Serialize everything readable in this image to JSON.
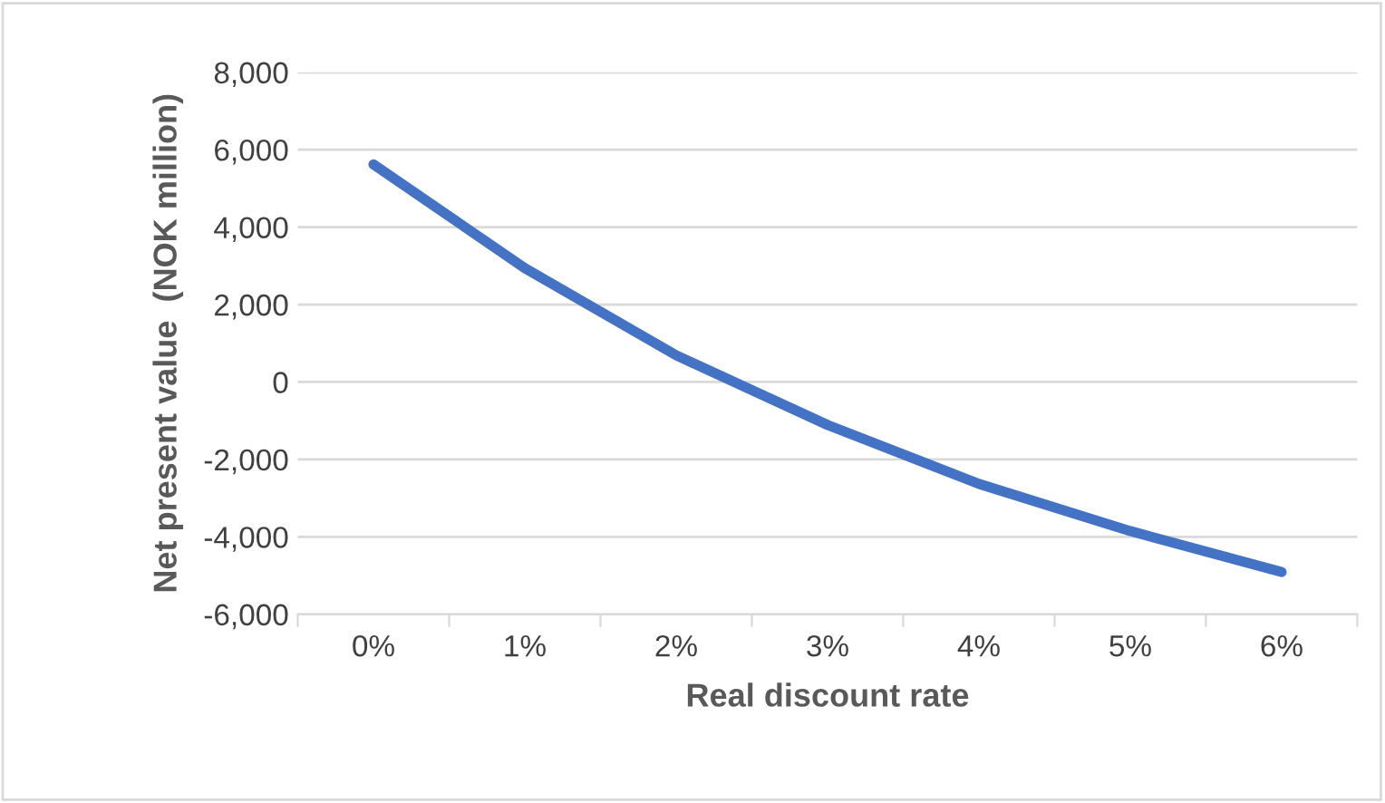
{
  "chart_data": {
    "type": "line",
    "xlabel": "Real discount rate",
    "ylabel": "Net present value  (NOK million)",
    "categories": [
      "0%",
      "1%",
      "2%",
      "3%",
      "4%",
      "5%",
      "6%"
    ],
    "series": [
      {
        "color": "#4472c4",
        "values": [
          5620,
          2940,
          690,
          -1110,
          -2630,
          -3850,
          -4910
        ]
      }
    ],
    "ylim": [
      -6000,
      8000
    ],
    "yticks": [
      {
        "value": -6000,
        "label": "-6,000"
      },
      {
        "value": -4000,
        "label": "-4,000"
      },
      {
        "value": -2000,
        "label": "-2,000"
      },
      {
        "value": 0,
        "label": "0"
      },
      {
        "value": 2000,
        "label": "2,000"
      },
      {
        "value": 4000,
        "label": "4,000"
      },
      {
        "value": 6000,
        "label": "6,000"
      },
      {
        "value": 8000,
        "label": "8,000"
      }
    ],
    "grid": "y",
    "legend": false,
    "marker": "none",
    "line_style": "solid"
  }
}
